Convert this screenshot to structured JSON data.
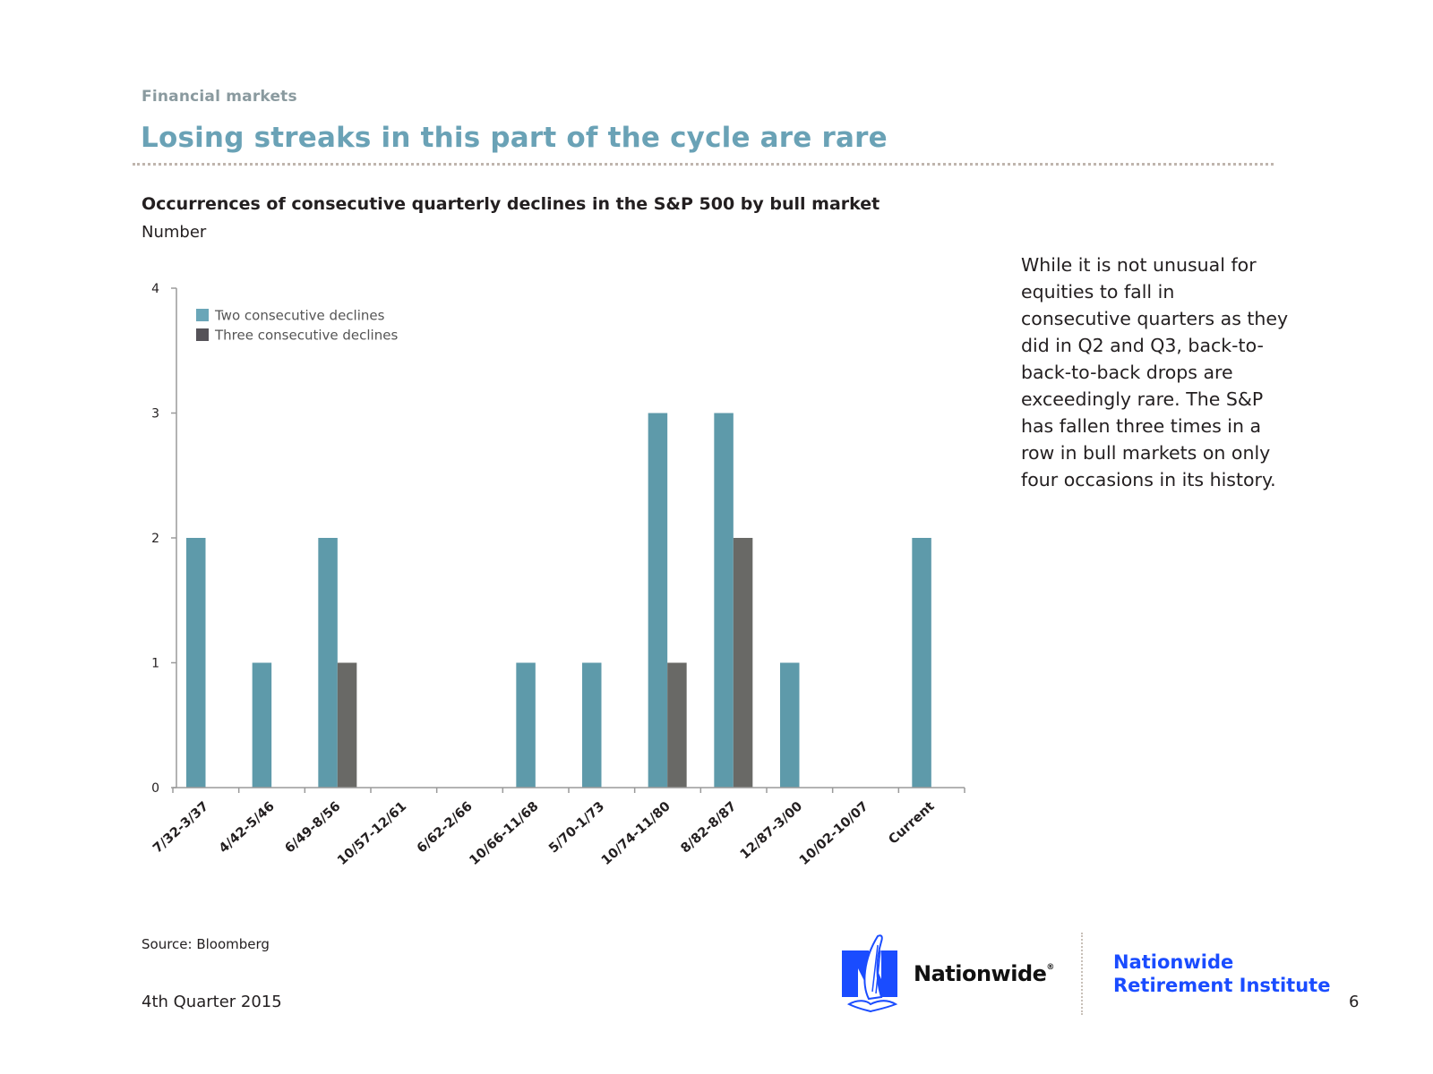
{
  "header": {
    "section": "Financial markets",
    "title": "Losing streaks in this part of the cycle are rare"
  },
  "chart_data": {
    "type": "bar",
    "title": "Occurrences of consecutive quarterly declines in the S&P 500 by bull market",
    "ylabel": "Number",
    "xlabel": "",
    "ylim": [
      0,
      4
    ],
    "yticks": [
      "0",
      "1",
      "2",
      "3",
      "4"
    ],
    "grid": false,
    "legend_position": "top-left",
    "categories": [
      "7/32-3/37",
      "4/42-5/46",
      "6/49-8/56",
      "10/57-12/61",
      "6/62-2/66",
      "10/66-11/68",
      "5/70-1/73",
      "10/74-11/80",
      "8/82-8/87",
      "12/87-3/00",
      "10/02-10/07",
      "Current"
    ],
    "series": [
      {
        "name": "Two consecutive declines",
        "color": "#5e9aaa",
        "values": [
          2,
          1,
          2,
          0,
          0,
          1,
          1,
          3,
          3,
          1,
          0,
          2
        ]
      },
      {
        "name": "Three consecutive declines",
        "color": "#696966",
        "values": [
          0,
          0,
          1,
          0,
          0,
          0,
          0,
          1,
          2,
          0,
          0,
          0
        ]
      }
    ]
  },
  "commentary": "While it is not unusual for equities to fall in consecutive quarters as they did in Q2 and Q3, back-to-back-to-back drops are exceedingly rare. The S&P has fallen three times in a row in bull markets on only four occasions in its history.",
  "footer": {
    "source": "Source: Bloomberg",
    "quarter": "4th Quarter 2015",
    "page_number": "6",
    "brand": "Nationwide",
    "registered_mark": "®",
    "institute_line1": "Nationwide",
    "institute_line2": "Retirement Institute"
  }
}
